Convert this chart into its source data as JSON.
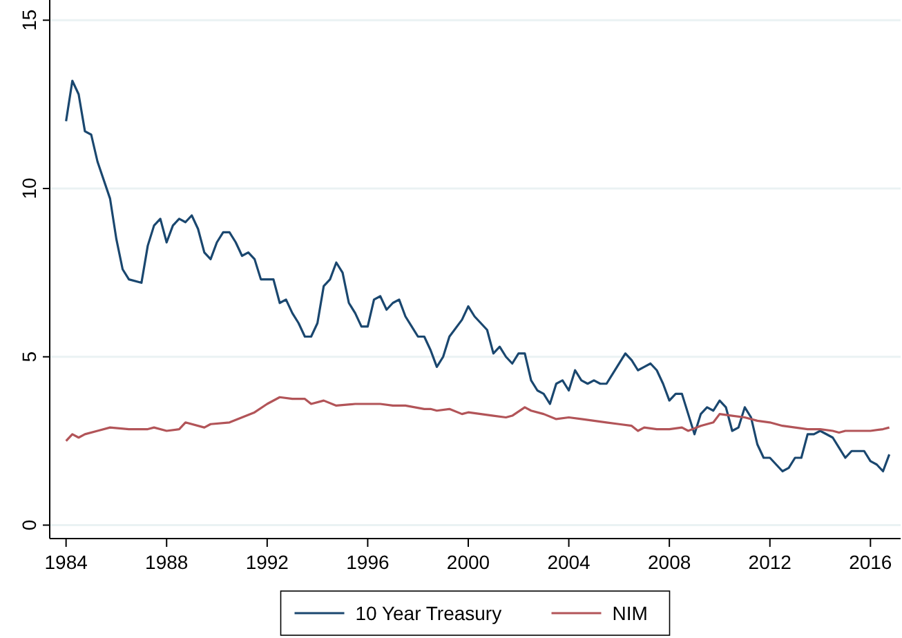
{
  "chart_data": {
    "type": "line",
    "xlim": [
      1983.35,
      2017.2
    ],
    "ylim": [
      -0.4,
      15.6
    ],
    "xticks": [
      1984,
      1988,
      1992,
      1996,
      2000,
      2004,
      2008,
      2012,
      2016
    ],
    "yticks": [
      0,
      5,
      10,
      15
    ],
    "grid": "y",
    "legend": "bottom",
    "line_style": "solid",
    "marker": "none",
    "series": [
      {
        "name": "10 Year Treasury",
        "color": "#1a476f",
        "x": [
          1984,
          1984.25,
          1984.5,
          1984.75,
          1985,
          1985.25,
          1985.75,
          1986,
          1986.25,
          1986.5,
          1987,
          1987.25,
          1987.5,
          1987.75,
          1988,
          1988.25,
          1988.5,
          1988.75,
          1989,
          1989.25,
          1989.5,
          1989.75,
          1990,
          1990.25,
          1990.5,
          1990.75,
          1991,
          1991.25,
          1991.5,
          1991.75,
          1992.25,
          1992.5,
          1992.75,
          1993,
          1993.25,
          1993.5,
          1993.75,
          1994,
          1994.25,
          1994.5,
          1994.75,
          1995,
          1995.25,
          1995.5,
          1995.75,
          1996,
          1996.25,
          1996.5,
          1996.75,
          1997,
          1997.25,
          1997.5,
          1997.75,
          1998,
          1998.25,
          1998.5,
          1998.75,
          1999,
          1999.25,
          1999.75,
          2000,
          2000.25,
          2000.75,
          2001,
          2001.25,
          2001.5,
          2001.75,
          2002,
          2002.25,
          2002.5,
          2002.75,
          2003,
          2003.25,
          2003.5,
          2003.75,
          2004,
          2004.25,
          2004.5,
          2004.75,
          2005,
          2005.25,
          2005.5,
          2005.75,
          2006.25,
          2006.5,
          2006.75,
          2007,
          2007.25,
          2007.5,
          2007.75,
          2008,
          2008.25,
          2008.5,
          2009,
          2009.25,
          2009.5,
          2009.75,
          2010,
          2010.25,
          2010.5,
          2010.75,
          2011,
          2011.25,
          2011.5,
          2011.75,
          2012,
          2012.5,
          2012.75,
          2013,
          2013.25,
          2013.5,
          2013.75,
          2014,
          2014.5,
          2014.75,
          2015,
          2015.25,
          2015.75,
          2016,
          2016.25,
          2016.5,
          2016.75
        ],
        "values": [
          12.0,
          13.2,
          12.8,
          11.7,
          11.6,
          10.8,
          9.7,
          8.5,
          7.6,
          7.3,
          7.2,
          8.3,
          8.9,
          9.1,
          8.4,
          8.9,
          9.1,
          9.0,
          9.2,
          8.8,
          8.1,
          7.9,
          8.4,
          8.7,
          8.7,
          8.4,
          8.0,
          8.1,
          7.9,
          7.3,
          7.3,
          6.6,
          6.7,
          6.3,
          6.0,
          5.6,
          5.6,
          6.0,
          7.1,
          7.3,
          7.8,
          7.5,
          6.6,
          6.3,
          5.9,
          5.9,
          6.7,
          6.8,
          6.4,
          6.6,
          6.7,
          6.2,
          5.9,
          5.6,
          5.6,
          5.2,
          4.7,
          5.0,
          5.6,
          6.1,
          6.5,
          6.2,
          5.8,
          5.1,
          5.3,
          5.0,
          4.8,
          5.1,
          5.1,
          4.3,
          4.0,
          3.9,
          3.6,
          4.2,
          4.3,
          4.0,
          4.6,
          4.3,
          4.2,
          4.3,
          4.2,
          4.2,
          4.5,
          5.1,
          4.9,
          4.6,
          4.7,
          4.8,
          4.6,
          4.2,
          3.7,
          3.9,
          3.9,
          2.7,
          3.3,
          3.5,
          3.4,
          3.7,
          3.5,
          2.8,
          2.9,
          3.5,
          3.2,
          2.4,
          2.0,
          2.0,
          1.6,
          1.7,
          2.0,
          2.0,
          2.7,
          2.7,
          2.8,
          2.6,
          2.3,
          2.0,
          2.2,
          2.2,
          1.9,
          1.8,
          1.6,
          2.1
        ]
      },
      {
        "name": "NIM",
        "color": "#b25458",
        "x": [
          1984,
          1984.25,
          1984.5,
          1984.75,
          1985.25,
          1985.75,
          1986.5,
          1987.25,
          1987.5,
          1988,
          1988.5,
          1988.75,
          1989.5,
          1989.75,
          1990.5,
          1991,
          1991.5,
          1992,
          1992.5,
          1993,
          1993.5,
          1993.75,
          1994.25,
          1994.75,
          1995.5,
          1996,
          1996.5,
          1997,
          1997.5,
          1998.25,
          1998.5,
          1998.75,
          1999.25,
          1999.75,
          2000,
          2000.5,
          2001,
          2001.5,
          2001.75,
          2002.25,
          2002.5,
          2003,
          2003.5,
          2004,
          2004.5,
          2005,
          2005.5,
          2006,
          2006.5,
          2006.75,
          2007,
          2007.5,
          2008,
          2008.5,
          2008.75,
          2009.25,
          2009.75,
          2010,
          2010.5,
          2011,
          2011.5,
          2012,
          2012.5,
          2013,
          2013.5,
          2014,
          2014.5,
          2014.75,
          2015,
          2015.5,
          2016,
          2016.5,
          2016.75
        ],
        "values": [
          2.5,
          2.7,
          2.6,
          2.7,
          2.8,
          2.9,
          2.85,
          2.85,
          2.9,
          2.8,
          2.85,
          3.05,
          2.9,
          3.0,
          3.05,
          3.2,
          3.35,
          3.6,
          3.8,
          3.75,
          3.75,
          3.6,
          3.7,
          3.55,
          3.6,
          3.6,
          3.6,
          3.55,
          3.55,
          3.45,
          3.45,
          3.4,
          3.45,
          3.3,
          3.35,
          3.3,
          3.25,
          3.2,
          3.25,
          3.5,
          3.4,
          3.3,
          3.15,
          3.2,
          3.15,
          3.1,
          3.05,
          3.0,
          2.95,
          2.8,
          2.9,
          2.85,
          2.85,
          2.9,
          2.8,
          2.95,
          3.05,
          3.3,
          3.25,
          3.2,
          3.1,
          3.05,
          2.95,
          2.9,
          2.85,
          2.85,
          2.8,
          2.75,
          2.8,
          2.8,
          2.8,
          2.85,
          2.9
        ]
      }
    ]
  }
}
